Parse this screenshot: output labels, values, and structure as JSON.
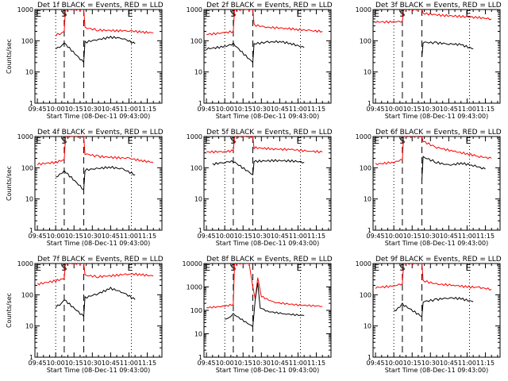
{
  "chart_data": [
    {
      "type": "line",
      "title": "Det 1f BLACK = Events, RED = LLD",
      "xlabel": "Start Time (08-Dec-11 09:43:00)",
      "ylabel": "Counts/sec",
      "yscale": "log",
      "ylim": [
        1,
        1000
      ],
      "x_ticks": [
        "09:45",
        "10:00",
        "10:15",
        "10:30",
        "10:45",
        "11:00",
        "11:15"
      ],
      "y_ticks": [
        "1",
        "10",
        "100",
        "1000"
      ],
      "markers": {
        "E": "09:46",
        "S": "10:07",
        "E2": "11:01"
      },
      "dashed_lines": [
        "10:07",
        "10:23"
      ],
      "dotted_lines": [
        "10:00",
        "11:02"
      ],
      "grid": false,
      "legend": "title",
      "series": [
        {
          "name": "RED = LLD",
          "color": "#ff0000",
          "x": [
            "10:00",
            "10:05",
            "10:07",
            "10:08",
            "10:23",
            "10:24",
            "10:35",
            "10:50",
            "11:00",
            "11:10",
            "11:20"
          ],
          "y": [
            150,
            180,
            200,
            1000,
            1000,
            260,
            220,
            210,
            210,
            190,
            180
          ]
        },
        {
          "name": "BLACK = Events",
          "color": "#000000",
          "x": [
            "10:00",
            "10:05",
            "10:07",
            "10:23",
            "10:24",
            "10:35",
            "10:45",
            "10:55",
            "11:05"
          ],
          "y": [
            55,
            70,
            85,
            20,
            90,
            110,
            130,
            120,
            80
          ]
        }
      ]
    },
    {
      "type": "line",
      "title": "Det 2f BLACK = Events, RED = LLD",
      "xlabel": "Start Time (08-Dec-11 09:43:00)",
      "ylabel": "",
      "yscale": "log",
      "ylim": [
        1,
        1000
      ],
      "x_ticks": [
        "09:45",
        "10:00",
        "10:15",
        "10:30",
        "10:45",
        "11:00",
        "11:15"
      ],
      "y_ticks": [
        "1",
        "10",
        "100",
        "1000"
      ],
      "markers": {
        "E": "09:46",
        "S": "10:07",
        "E2": "11:01"
      },
      "dashed_lines": [
        "10:07",
        "10:23"
      ],
      "dotted_lines": [
        "10:00",
        "11:02"
      ],
      "grid": false,
      "legend": "title",
      "series": [
        {
          "name": "RED = LLD",
          "color": "#ff0000",
          "x": [
            "09:45",
            "10:00",
            "10:07",
            "10:08",
            "10:23",
            "10:24",
            "10:35",
            "10:50",
            "11:00",
            "11:10",
            "11:20"
          ],
          "y": [
            160,
            180,
            200,
            1000,
            1000,
            320,
            270,
            250,
            230,
            210,
            200
          ]
        },
        {
          "name": "BLACK = Events",
          "color": "#000000",
          "x": [
            "09:45",
            "10:00",
            "10:07",
            "10:23",
            "10:24",
            "10:35",
            "10:45",
            "10:55",
            "11:05"
          ],
          "y": [
            55,
            65,
            80,
            20,
            80,
            90,
            95,
            80,
            60
          ]
        }
      ]
    },
    {
      "type": "line",
      "title": "Det 3f BLACK = Events, RED = LLD",
      "xlabel": "Start Time (08-Dec-11 09:43:00)",
      "ylabel": "",
      "yscale": "log",
      "ylim": [
        1,
        1000
      ],
      "x_ticks": [
        "09:45",
        "10:00",
        "10:15",
        "10:30",
        "10:45",
        "11:00",
        "11:15"
      ],
      "y_ticks": [
        "1",
        "10",
        "100",
        "1000"
      ],
      "markers": {
        "E": "09:46",
        "S": "10:07",
        "E2": "11:01"
      },
      "dashed_lines": [
        "10:07",
        "10:23"
      ],
      "dotted_lines": [
        "10:00",
        "11:02"
      ],
      "grid": false,
      "legend": "title",
      "series": [
        {
          "name": "RED = LLD",
          "color": "#ff0000",
          "x": [
            "09:45",
            "10:00",
            "10:07",
            "10:08",
            "10:23",
            "10:24",
            "10:40",
            "10:55",
            "11:10",
            "11:20"
          ],
          "y": [
            400,
            400,
            420,
            1000,
            1000,
            750,
            650,
            600,
            550,
            500
          ]
        },
        {
          "name": "BLACK = Events",
          "color": "#000000",
          "x": [
            "10:23",
            "10:24",
            "10:35",
            "10:45",
            "10:55",
            "11:05"
          ],
          "y": [
            30,
            90,
            85,
            80,
            75,
            55
          ]
        }
      ]
    },
    {
      "type": "line",
      "title": "Det 4f BLACK = Events, RED = LLD",
      "xlabel": "Start Time (08-Dec-11 09:43:00)",
      "ylabel": "Counts/sec",
      "yscale": "log",
      "ylim": [
        1,
        1000
      ],
      "x_ticks": [
        "09:45",
        "10:00",
        "10:15",
        "10:30",
        "10:45",
        "11:00",
        "11:15"
      ],
      "y_ticks": [
        "1",
        "10",
        "100",
        "1000"
      ],
      "markers": {
        "E": "09:46",
        "S": "10:07",
        "E2": "11:01"
      },
      "dashed_lines": [
        "10:07",
        "10:23"
      ],
      "dotted_lines": [
        "10:00",
        "11:02"
      ],
      "grid": false,
      "legend": "title",
      "series": [
        {
          "name": "RED = LLD",
          "color": "#ff0000",
          "x": [
            "09:45",
            "10:00",
            "10:07",
            "10:08",
            "10:23",
            "10:24",
            "10:35",
            "10:50",
            "11:00",
            "11:10",
            "11:20"
          ],
          "y": [
            130,
            150,
            180,
            1000,
            1000,
            280,
            230,
            210,
            200,
            170,
            150
          ]
        },
        {
          "name": "BLACK = Events",
          "color": "#000000",
          "x": [
            "10:00",
            "10:05",
            "10:07",
            "10:23",
            "10:24",
            "10:35",
            "10:45",
            "10:55",
            "11:05"
          ],
          "y": [
            50,
            65,
            80,
            20,
            85,
            95,
            105,
            90,
            60
          ]
        }
      ]
    },
    {
      "type": "line",
      "title": "Det 5f BLACK = Events, RED = LLD",
      "xlabel": "Start Time (08-Dec-11 09:43:00)",
      "ylabel": "",
      "yscale": "log",
      "ylim": [
        1,
        1000
      ],
      "x_ticks": [
        "09:45",
        "10:00",
        "10:15",
        "10:30",
        "10:45",
        "11:00",
        "11:15"
      ],
      "y_ticks": [
        "1",
        "10",
        "100",
        "1000"
      ],
      "markers": {
        "E": "09:46",
        "S": "10:07",
        "E2": "11:01"
      },
      "dashed_lines": [
        "10:07",
        "10:23"
      ],
      "dotted_lines": [
        "10:00",
        "11:02"
      ],
      "grid": false,
      "legend": "title",
      "series": [
        {
          "name": "RED = LLD",
          "color": "#ff0000",
          "x": [
            "09:45",
            "10:00",
            "10:07",
            "10:08",
            "10:23",
            "10:24",
            "10:40",
            "10:55",
            "11:10",
            "11:20"
          ],
          "y": [
            320,
            330,
            350,
            1000,
            1000,
            440,
            400,
            380,
            340,
            320
          ]
        },
        {
          "name": "BLACK = Events",
          "color": "#000000",
          "x": [
            "09:50",
            "10:00",
            "10:07",
            "10:23",
            "10:24",
            "10:40",
            "10:55",
            "11:05"
          ],
          "y": [
            130,
            150,
            160,
            60,
            160,
            170,
            165,
            150
          ]
        }
      ]
    },
    {
      "type": "line",
      "title": "Det 6f BLACK = Events, RED = LLD",
      "xlabel": "Start Time (08-Dec-11 09:43:00)",
      "ylabel": "",
      "yscale": "log",
      "ylim": [
        1,
        1000
      ],
      "x_ticks": [
        "09:45",
        "10:00",
        "10:15",
        "10:30",
        "10:45",
        "11:00",
        "11:15"
      ],
      "y_ticks": [
        "1",
        "10",
        "100",
        "1000"
      ],
      "markers": {
        "E": "09:46",
        "S": "10:07",
        "E2": "11:01"
      },
      "dashed_lines": [
        "10:07",
        "10:23"
      ],
      "dotted_lines": [
        "10:00",
        "11:02"
      ],
      "grid": false,
      "legend": "title",
      "series": [
        {
          "name": "RED = LLD",
          "color": "#ff0000",
          "x": [
            "09:45",
            "10:00",
            "10:07",
            "10:08",
            "10:23",
            "10:24",
            "10:35",
            "10:50",
            "11:00",
            "11:10",
            "11:20"
          ],
          "y": [
            130,
            150,
            180,
            1000,
            1000,
            700,
            450,
            330,
            280,
            230,
            200
          ]
        },
        {
          "name": "BLACK = Events",
          "color": "#000000",
          "x": [
            "10:23",
            "10:24",
            "10:35",
            "10:45",
            "10:55",
            "11:05",
            "11:15"
          ],
          "y": [
            40,
            220,
            150,
            120,
            140,
            120,
            90
          ]
        }
      ]
    },
    {
      "type": "line",
      "title": "Det 7f BLACK = Events, RED = LLD",
      "xlabel": "Start Time (08-Dec-11 09:43:00)",
      "ylabel": "Counts/sec",
      "yscale": "log",
      "ylim": [
        1,
        1000
      ],
      "x_ticks": [
        "09:45",
        "10:00",
        "10:15",
        "10:30",
        "10:45",
        "11:00",
        "11:15"
      ],
      "y_ticks": [
        "1",
        "10",
        "100",
        "1000"
      ],
      "markers": {
        "E": "09:46",
        "S": "10:07",
        "E2": "11:01"
      },
      "dashed_lines": [
        "10:07",
        "10:23"
      ],
      "dotted_lines": [
        "10:00",
        "11:02"
      ],
      "grid": false,
      "legend": "title",
      "series": [
        {
          "name": "RED = LLD",
          "color": "#ff0000",
          "x": [
            "09:45",
            "10:00",
            "10:07",
            "10:08",
            "10:23",
            "10:24",
            "10:35",
            "10:50",
            "11:00",
            "11:10",
            "11:20"
          ],
          "y": [
            220,
            280,
            330,
            1000,
            1000,
            420,
            380,
            420,
            470,
            440,
            400
          ]
        },
        {
          "name": "BLACK = Events",
          "color": "#000000",
          "x": [
            "10:00",
            "10:05",
            "10:07",
            "10:23",
            "10:24",
            "10:35",
            "10:45",
            "10:55",
            "11:05"
          ],
          "y": [
            40,
            55,
            70,
            20,
            80,
            110,
            160,
            120,
            70
          ]
        }
      ]
    },
    {
      "type": "line",
      "title": "Det 8f BLACK = Events, RED = LLD",
      "xlabel": "Start Time (08-Dec-11 09:43:00)",
      "ylabel": "",
      "yscale": "log",
      "ylim": [
        1,
        10000
      ],
      "x_ticks": [
        "09:45",
        "10:00",
        "10:15",
        "10:30",
        "10:45",
        "11:00",
        "11:15"
      ],
      "y_ticks": [
        "1",
        "10",
        "100",
        "1000",
        "10000"
      ],
      "markers": {
        "E": "09:46",
        "S": "10:07",
        "E2": "11:01"
      },
      "dashed_lines": [
        "10:07",
        "10:23"
      ],
      "dotted_lines": [
        "10:00",
        "11:02"
      ],
      "grid": false,
      "legend": "title",
      "series": [
        {
          "name": "RED = LLD",
          "color": "#ff0000",
          "x": [
            "09:45",
            "10:00",
            "10:07",
            "10:08",
            "10:20",
            "10:23",
            "10:25",
            "10:27",
            "10:30",
            "10:40",
            "11:00",
            "11:20"
          ],
          "y": [
            130,
            150,
            180,
            10000,
            10000,
            1000,
            300,
            2500,
            400,
            220,
            170,
            150
          ]
        },
        {
          "name": "BLACK = Events",
          "color": "#000000",
          "x": [
            "10:00",
            "10:05",
            "10:07",
            "10:23",
            "10:24",
            "10:25",
            "10:27",
            "10:29",
            "10:35",
            "10:50",
            "11:05"
          ],
          "y": [
            40,
            55,
            70,
            20,
            80,
            300,
            1500,
            130,
            90,
            70,
            60
          ]
        }
      ]
    },
    {
      "type": "line",
      "title": "Det 9f BLACK = Events, RED = LLD",
      "xlabel": "Start Time (08-Dec-11 09:43:00)",
      "ylabel": "",
      "yscale": "log",
      "ylim": [
        1,
        1000
      ],
      "x_ticks": [
        "09:45",
        "10:00",
        "10:15",
        "10:30",
        "10:45",
        "11:00",
        "11:15"
      ],
      "y_ticks": [
        "1",
        "10",
        "100",
        "1000"
      ],
      "markers": {
        "E": "09:46",
        "S": "10:07",
        "E2": "11:01"
      },
      "dashed_lines": [
        "10:07",
        "10:23"
      ],
      "dotted_lines": [
        "10:00",
        "11:02"
      ],
      "grid": false,
      "legend": "title",
      "series": [
        {
          "name": "RED = LLD",
          "color": "#ff0000",
          "x": [
            "09:45",
            "10:00",
            "10:07",
            "10:08",
            "10:23",
            "10:24",
            "10:35",
            "10:50",
            "11:00",
            "11:10",
            "11:20"
          ],
          "y": [
            170,
            190,
            230,
            1000,
            1000,
            280,
            220,
            200,
            180,
            170,
            150
          ]
        },
        {
          "name": "BLACK = Events",
          "color": "#000000",
          "x": [
            "10:00",
            "10:05",
            "10:07",
            "10:23",
            "10:24",
            "10:35",
            "10:45",
            "10:55",
            "11:05"
          ],
          "y": [
            30,
            40,
            50,
            20,
            60,
            70,
            80,
            75,
            60
          ]
        }
      ]
    }
  ]
}
